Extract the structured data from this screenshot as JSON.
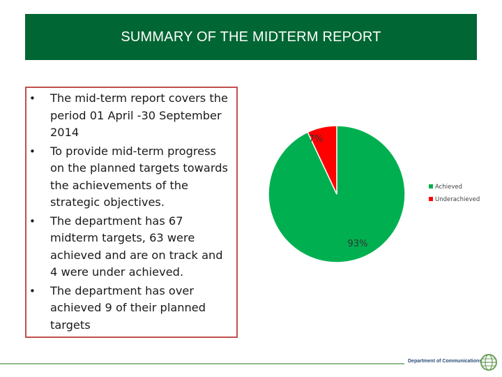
{
  "header": {
    "title": "SUMMARY OF THE MIDTERM REPORT"
  },
  "bullets": [
    "The mid-term report covers the period  01 April -30 September 2014",
    "To provide mid-term progress on the planned targets  towards the achievements of the strategic objectives.",
    "The department has 67 midterm targets, 63 were achieved and are on track and 4 were under achieved.",
    "The department has over achieved 9 of their planned targets"
  ],
  "chart_data": {
    "type": "pie",
    "title": "",
    "categories": [
      "Achieved",
      "Underachieved"
    ],
    "values": [
      93,
      7
    ],
    "value_labels": [
      "93%",
      "7%"
    ],
    "colors": [
      "#00b050",
      "#ff0000"
    ],
    "legend_position": "right"
  },
  "footer": {
    "department": "Department of Communications"
  },
  "colors": {
    "title_bar": "#006633",
    "text_border": "#c0504d"
  }
}
